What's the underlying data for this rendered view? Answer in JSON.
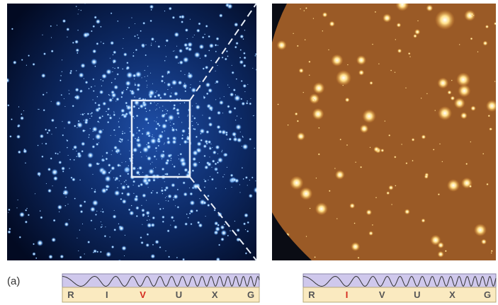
{
  "panel_label": "(a)",
  "spectrum_bars": [
    {
      "letters": [
        {
          "text": "R"
        },
        {
          "text": "I"
        },
        {
          "text": "V",
          "highlighted": true
        },
        {
          "text": "U"
        },
        {
          "text": "X"
        },
        {
          "text": "G"
        }
      ]
    },
    {
      "letters": [
        {
          "text": "R"
        },
        {
          "text": "I",
          "highlighted": true
        },
        {
          "text": "V"
        },
        {
          "text": "U"
        },
        {
          "text": "X"
        },
        {
          "text": "G"
        }
      ]
    }
  ]
}
